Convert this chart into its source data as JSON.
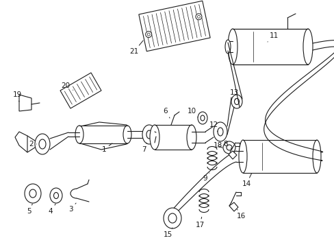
{
  "bg_color": "#ffffff",
  "line_color": "#1a1a1a",
  "lw": 0.8,
  "fig_width": 4.89,
  "fig_height": 3.6,
  "dpi": 100
}
